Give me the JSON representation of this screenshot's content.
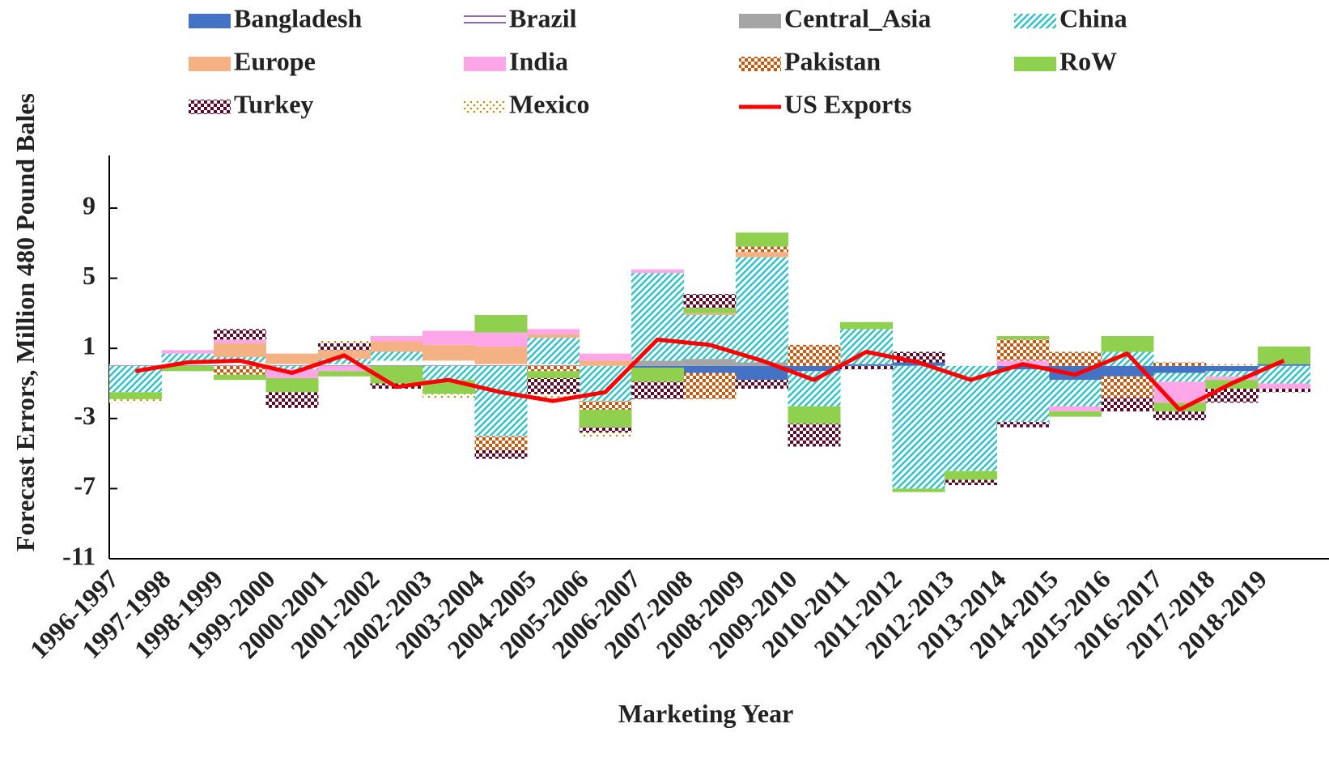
{
  "chart_data": {
    "type": "stacked-area",
    "x_label": "Marketing Year",
    "y_label": "Forecast Errors, Million 480 Pound Bales",
    "categories": [
      "1996-1997",
      "1997-1998",
      "1998-1999",
      "1999-2000",
      "2000-2001",
      "2001-2002",
      "2002-2003",
      "2003-2004",
      "2004-2005",
      "2005-2006",
      "2006-2007",
      "2007-2008",
      "2008-2009",
      "2009-2010",
      "2010-2011",
      "2011-2012",
      "2012-2013",
      "2013-2014",
      "2014-2015",
      "2015-2016",
      "2016-2017",
      "2017-2018",
      "2018-2019"
    ],
    "ylim": [
      -11,
      12
    ],
    "yticks": [
      -11,
      -7,
      -3,
      1,
      5,
      9
    ],
    "series": [
      {
        "name": "Bangladesh",
        "color": "#4472c4",
        "values": [
          0,
          0,
          0,
          0,
          0,
          0,
          0,
          0,
          0,
          0,
          -0.1,
          -0.4,
          -0.8,
          -0.3,
          0.1,
          0.2,
          0,
          -0.2,
          -0.8,
          -0.6,
          -0.4,
          -0.3,
          0.1
        ]
      },
      {
        "name": "Brazil",
        "color": "#7030a0",
        "pattern": "lines",
        "values": [
          0.1,
          0.2,
          0.2,
          0.1,
          0.1,
          0.3,
          0.3,
          0.1,
          0.1,
          0,
          0,
          0,
          0,
          0,
          0,
          0,
          0,
          0,
          0,
          0,
          0,
          0,
          0
        ]
      },
      {
        "name": "Central_Asia",
        "color": "#a5a5a5",
        "values": [
          0,
          0,
          0,
          0,
          0,
          0,
          0,
          0,
          0,
          0,
          0.3,
          0.4,
          0.2,
          0,
          0,
          0,
          0,
          0,
          0,
          0,
          0,
          0,
          0
        ]
      },
      {
        "name": "China",
        "color": "#2ec4c8",
        "pattern": "diagonal",
        "values": [
          -1.5,
          0.5,
          0.3,
          -0.2,
          0.3,
          0.5,
          -0.8,
          -4,
          1.5,
          -2,
          5,
          2.5,
          6,
          -2,
          2,
          -7,
          -6,
          -3,
          -1.5,
          0.8,
          -0.5,
          -0.3,
          -1
        ]
      },
      {
        "name": "Europe",
        "color": "#f4b183",
        "values": [
          0,
          0,
          0.8,
          0.6,
          0.5,
          0.6,
          0.9,
          1.0,
          0.2,
          0.3,
          0,
          0.1,
          0.3,
          0,
          0,
          0,
          0,
          0,
          0,
          0,
          0,
          0,
          0
        ]
      },
      {
        "name": "India",
        "color": "#ffa6e8",
        "values": [
          0,
          0.2,
          0.2,
          -0.5,
          -0.3,
          0.3,
          0.8,
          0.8,
          0.3,
          0.4,
          0.2,
          0,
          0,
          0,
          0,
          0,
          0,
          0.3,
          -0.3,
          0,
          -1.2,
          -0.2,
          -0.3
        ]
      },
      {
        "name": "Pakistan",
        "color": "#c55a11",
        "pattern": "checker",
        "values": [
          0,
          0,
          -0.5,
          0,
          0,
          0,
          0,
          -0.8,
          -0.3,
          -0.5,
          0,
          -1.5,
          0.3,
          1.2,
          0,
          0,
          0,
          1.2,
          0.8,
          -1.2,
          0.2,
          0,
          0
        ]
      },
      {
        "name": "RoW",
        "color": "#8fd14f",
        "values": [
          -0.4,
          -0.3,
          -0.3,
          -0.8,
          -0.3,
          -1.0,
          -0.8,
          1.0,
          -0.4,
          -1,
          -0.8,
          0.3,
          0.8,
          -1.0,
          0.4,
          -0.2,
          -0.5,
          0.2,
          -0.3,
          0.9,
          -0.5,
          -0.5,
          1.0
        ]
      },
      {
        "name": "Turkey",
        "color": "#5c0a2a",
        "pattern": "checker",
        "values": [
          0,
          0,
          0.6,
          -0.9,
          0.4,
          -0.3,
          0,
          -0.5,
          -0.9,
          -0.3,
          -1.0,
          0.8,
          -0.5,
          -1.3,
          -0.2,
          0.6,
          -0.3,
          -0.3,
          0,
          -0.8,
          -0.5,
          -0.8,
          -0.2
        ]
      },
      {
        "name": "Mexico",
        "color": "#bf9000",
        "pattern": "dots",
        "values": [
          -0.2,
          0,
          0,
          0,
          0.2,
          0,
          -0.3,
          0,
          -0.2,
          -0.3,
          0,
          0,
          0,
          0,
          0,
          0,
          0,
          0,
          0,
          0,
          0,
          0.1,
          0
        ]
      },
      {
        "name": "US Exports",
        "color": "#ff0000",
        "type": "line",
        "values": [
          -0.3,
          0.2,
          0.3,
          -0.4,
          0.6,
          -1.2,
          -0.8,
          -1.5,
          -2,
          -1.5,
          1.5,
          1.2,
          0.3,
          -0.8,
          0.8,
          0.2,
          -0.8,
          0.1,
          -0.5,
          0.7,
          -2.5,
          -1,
          0.3
        ]
      }
    ]
  }
}
